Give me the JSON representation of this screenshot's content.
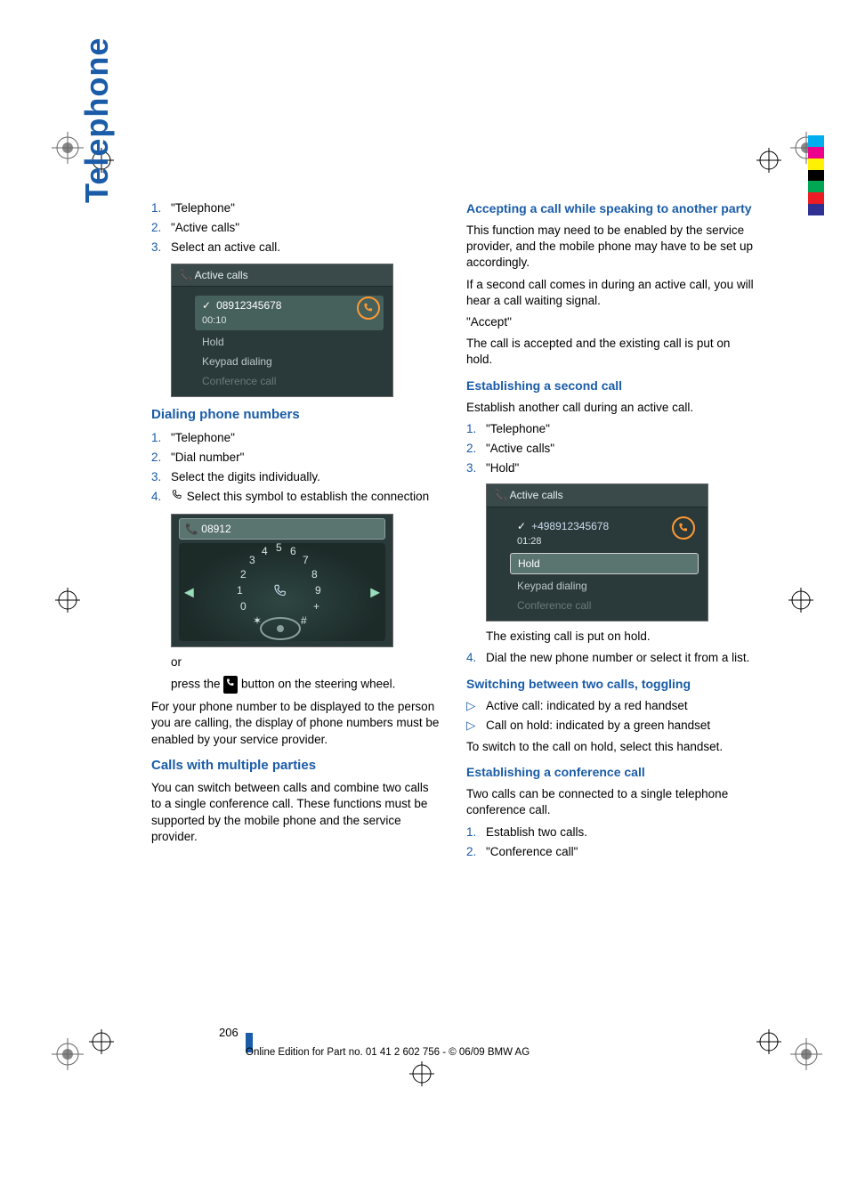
{
  "side_tab": "Telephone",
  "colors": {
    "blue": "#1a5ca8",
    "text": "#000000",
    "screenshot_bg": "#2a3a3a",
    "screenshot_hl": "#5a7470",
    "orange": "#ff9933"
  },
  "left": {
    "intro_list": [
      "\"Telephone\"",
      "\"Active calls\"",
      "Select an active call."
    ],
    "screenshot1": {
      "title": "Active calls",
      "active_number": "08912345678",
      "active_time": "00:10",
      "rows": [
        "Hold",
        "Keypad dialing",
        "Conference call"
      ]
    },
    "h_dialing": "Dialing phone numbers",
    "dialing_list": [
      "\"Telephone\"",
      "\"Dial number\"",
      "Select the digits individually.",
      "Select this symbol to establish the connection"
    ],
    "screenshot2": {
      "number_entered": "08912"
    },
    "or": "or",
    "press_line_a": "press the ",
    "press_line_b": " button on the steering wheel.",
    "display_para": "For your phone number to be displayed to the person you are calling, the display of phone numbers must be enabled by your service provider.",
    "h_multi": "Calls with multiple parties",
    "multi_para": "You can switch between calls and combine two calls to a single conference call. These functions must be supported by the mobile phone and the service provider."
  },
  "right": {
    "h_accept": "Accepting a call while speaking to another party",
    "accept_p1": "This function may need to be enabled by the service provider, and the mobile phone may have to be set up accordingly.",
    "accept_p2": "If a second call comes in during an active call, you will hear a call waiting signal.",
    "accept_q": "\"Accept\"",
    "accept_p3": "The call is accepted and the existing call is put on hold.",
    "h_est2": "Establishing a second call",
    "est2_p1": "Establish another call during an active call.",
    "est2_list": [
      "\"Telephone\"",
      "\"Active calls\"",
      "\"Hold\""
    ],
    "screenshot3": {
      "title": "Active calls",
      "active_number": "+498912345678",
      "active_time": "01:28",
      "hl_row": "Hold",
      "rows": [
        "Keypad dialing",
        "Conference call"
      ]
    },
    "est2_after": "The existing call is put on hold.",
    "est2_item4": "Dial the new phone number or select it from a list.",
    "h_switch": "Switching between two calls, toggling",
    "switch_bullets": [
      "Active call: indicated by a red handset",
      "Call on hold: indicated by a green handset"
    ],
    "switch_p": "To switch to the call on hold, select this handset.",
    "h_conf": "Establishing a conference call",
    "conf_p": "Two calls can be connected to a single telephone conference call.",
    "conf_list": [
      "Establish two calls.",
      "\"Conference call\""
    ]
  },
  "page_number": "206",
  "footer": "Online Edition for Part no. 01 41 2 602 756 - © 06/09 BMW AG",
  "colorbar": [
    "#00aeef",
    "#ec008c",
    "#fff200",
    "#000000",
    "#00a651",
    "#ed1c24",
    "#2e3192"
  ]
}
